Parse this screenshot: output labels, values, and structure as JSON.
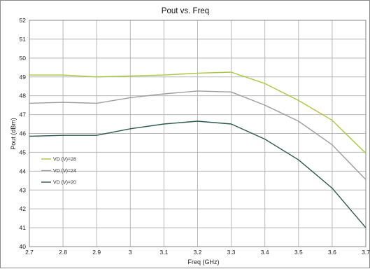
{
  "chart_data": {
    "type": "line",
    "title": "Pout  vs. Freq",
    "xlabel": "Freq (GHz)",
    "ylabel": "Pout (dBm)",
    "xlim": [
      2.7,
      3.7
    ],
    "ylim": [
      40,
      52
    ],
    "x": [
      2.7,
      2.8,
      2.9,
      3.0,
      3.1,
      3.2,
      3.3,
      3.4,
      3.5,
      3.6,
      3.7
    ],
    "x_tick_labels": [
      "2.7",
      "2.8",
      "2.9",
      "3",
      "3.1",
      "3.2",
      "3.3",
      "3.4",
      "3.5",
      "3.6",
      "3.7"
    ],
    "y_tick_labels": [
      "40",
      "41",
      "42",
      "43",
      "44",
      "45",
      "46",
      "47",
      "48",
      "49",
      "50",
      "51",
      "52"
    ],
    "grid": true,
    "legend_position": "bottom-left",
    "series": [
      {
        "name": "VD (V)=28",
        "color": "#a8c83a",
        "values": [
          49.1,
          49.1,
          49.0,
          49.05,
          49.1,
          49.2,
          49.25,
          48.65,
          47.75,
          46.7,
          44.95
        ]
      },
      {
        "name": "VD (V)=24",
        "color": "#9e9e9e",
        "values": [
          47.6,
          47.65,
          47.6,
          47.9,
          48.1,
          48.25,
          48.2,
          47.5,
          46.65,
          45.4,
          43.55
        ]
      },
      {
        "name": "VD (V)=20",
        "color": "#2e5a4c",
        "values": [
          45.85,
          45.9,
          45.9,
          46.25,
          46.5,
          46.65,
          46.5,
          45.7,
          44.6,
          43.1,
          41.0
        ]
      }
    ]
  }
}
